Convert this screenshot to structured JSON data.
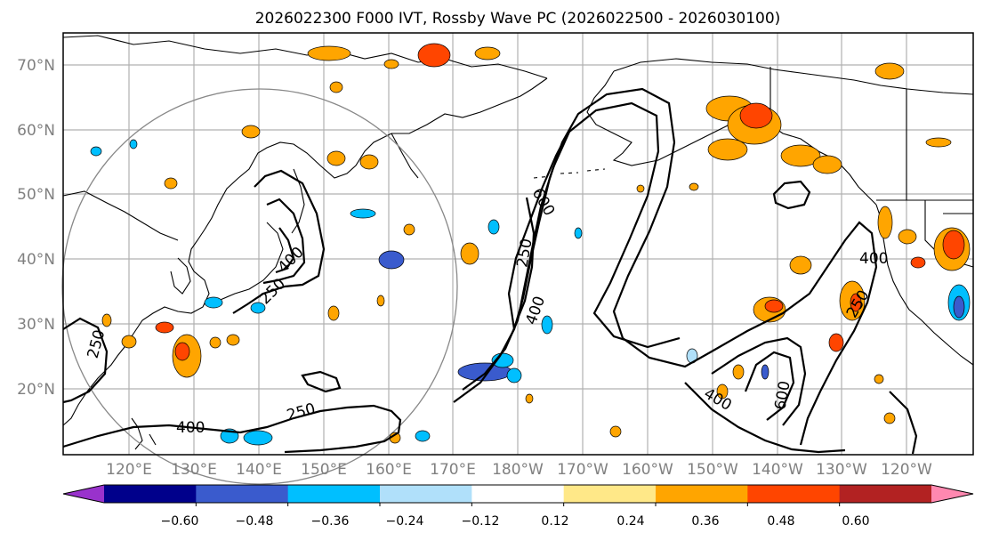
{
  "title": "2026022300 F000 IVT, Rossby Wave PC (2026022500 - 2026030100)",
  "map": {
    "lat_ticks": [
      "70°N",
      "60°N",
      "50°N",
      "40°N",
      "30°N",
      "20°N"
    ],
    "lon_ticks": [
      "120°E",
      "130°E",
      "140°E",
      "150°E",
      "160°E",
      "170°E",
      "180°W",
      "170°W",
      "160°W",
      "150°W",
      "140°W",
      "130°W",
      "120°W"
    ],
    "contour_labels": [
      {
        "id": "c1",
        "text": "600"
      },
      {
        "id": "c2",
        "text": "250"
      },
      {
        "id": "c3",
        "text": "400"
      },
      {
        "id": "c4",
        "text": "400"
      },
      {
        "id": "c5",
        "text": "250"
      },
      {
        "id": "c6",
        "text": "400"
      },
      {
        "id": "c7",
        "text": "250"
      },
      {
        "id": "c8",
        "text": "400"
      },
      {
        "id": "c9",
        "text": "250"
      },
      {
        "id": "c10",
        "text": "250"
      },
      {
        "id": "c11",
        "text": "400"
      },
      {
        "id": "c12",
        "text": "600"
      }
    ]
  },
  "colorbar": {
    "ticks": [
      "−0.60",
      "−0.48",
      "−0.36",
      "−0.24",
      "−0.12",
      "0.12",
      "0.24",
      "0.36",
      "0.48",
      "0.60"
    ],
    "colors": [
      "#9932cc",
      "#00008b",
      "#3a5bcd",
      "#00bfff",
      "#b0e0fa",
      "#ffffff",
      "#ffe888",
      "#ffa500",
      "#ff4500",
      "#b22222",
      "#ff88b0"
    ]
  }
}
